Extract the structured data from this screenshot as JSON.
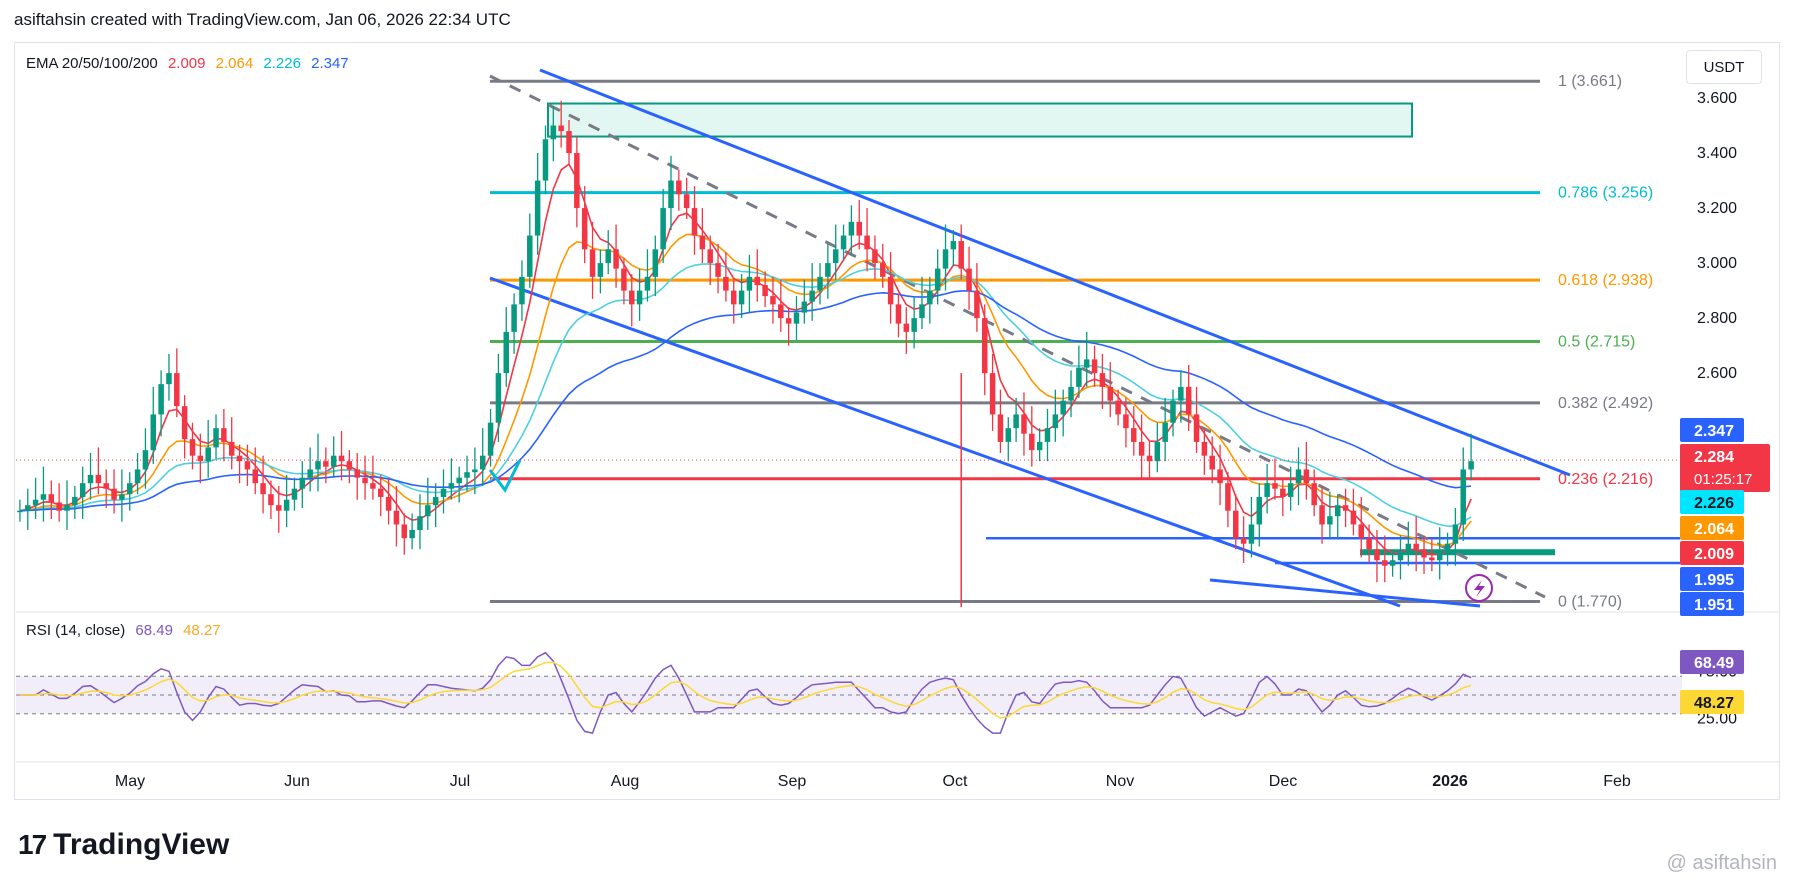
{
  "header": {
    "attribution": "asiftahsin created with TradingView.com, Jan 06, 2026 22:34 UTC"
  },
  "legend_main": {
    "label": "EMA 20/50/100/200",
    "v20": "2.009",
    "v50": "2.064",
    "v100": "2.226",
    "v200": "2.347"
  },
  "legend_rsi": {
    "label": "RSI (14, close)",
    "rsi": "68.49",
    "ma": "48.27"
  },
  "currency": "USDT",
  "footer": {
    "brand": "TradingView",
    "logo_glyph": "17",
    "watermark": "@ asiftahsin"
  },
  "colors": {
    "up": "#089981",
    "down": "#f23645",
    "ema20": "#f23645",
    "ema50": "#ff9800",
    "ema100": "#4dd0e1",
    "ema200": "#2962ff",
    "rsi": "#7e57c2",
    "rsi_ma": "#fdd835",
    "channel": "#2962ff"
  },
  "chart_data": {
    "type": "candlestick",
    "y_axis": {
      "min": 1.75,
      "max": 3.72,
      "ticks": [
        "3.600",
        "3.400",
        "3.200",
        "3.000",
        "2.800",
        "2.600"
      ]
    },
    "x_axis": {
      "labels": [
        "May",
        "Jun",
        "Jul",
        "Aug",
        "Sep",
        "Oct",
        "Nov",
        "Dec",
        "2026",
        "Feb"
      ]
    },
    "fibonacci": [
      {
        "label": "1 (3.661)",
        "value": 3.661,
        "color": "#787b86"
      },
      {
        "label": "0.786 (3.256)",
        "value": 3.256,
        "color": "#00bcd4"
      },
      {
        "label": "0.618 (2.938)",
        "value": 2.938,
        "color": "#ff9800"
      },
      {
        "label": "0.5 (2.715)",
        "value": 2.715,
        "color": "#4caf50"
      },
      {
        "label": "0.382 (2.492)",
        "value": 2.492,
        "color": "#787b86"
      },
      {
        "label": "0.236 (2.216)",
        "value": 2.216,
        "color": "#f23645"
      },
      {
        "label": "0 (1.770)",
        "value": 1.77,
        "color": "#787b86"
      }
    ],
    "price_tags": [
      {
        "text": "2.347",
        "value": 2.347,
        "color": "#2962ff"
      },
      {
        "text": "2.284",
        "value": 2.284,
        "color": "#f23645",
        "sub": "01:25:17"
      },
      {
        "text": "2.226",
        "value": 2.226,
        "color": "#00e5ff"
      },
      {
        "text": "2.064",
        "value": 2.064,
        "color": "#ff9800"
      },
      {
        "text": "2.009",
        "value": 2.009,
        "color": "#f23645"
      },
      {
        "text": "1.995",
        "value": 1.995,
        "color": "#2962ff"
      },
      {
        "text": "1.951",
        "value": 1.951,
        "color": "#2962ff"
      }
    ],
    "rsi": {
      "ticks": [
        "75.00",
        "25.00"
      ],
      "upper": 70,
      "mid": 50,
      "lower": 30,
      "tags": [
        {
          "text": "68.49",
          "value": 68.49,
          "color": "#7e57c2"
        },
        {
          "text": "48.27",
          "value": 48.27,
          "color": "#fdd835"
        }
      ]
    },
    "series": [
      {
        "name": "EMA 20",
        "value": 2.009
      },
      {
        "name": "EMA 50",
        "value": 2.064
      },
      {
        "name": "EMA 100",
        "value": 2.226
      },
      {
        "name": "EMA 200",
        "value": 2.347
      }
    ],
    "close_path": [
      2.1,
      2.12,
      2.14,
      2.16,
      2.13,
      2.1,
      2.12,
      2.15,
      2.2,
      2.23,
      2.2,
      2.18,
      2.14,
      2.16,
      2.2,
      2.25,
      2.32,
      2.45,
      2.56,
      2.6,
      2.48,
      2.36,
      2.3,
      2.28,
      2.33,
      2.4,
      2.35,
      2.3,
      2.28,
      2.25,
      2.2,
      2.16,
      2.12,
      2.1,
      2.14,
      2.18,
      2.22,
      2.25,
      2.28,
      2.26,
      2.3,
      2.28,
      2.25,
      2.22,
      2.2,
      2.18,
      2.15,
      2.1,
      2.05,
      2.0,
      2.03,
      2.08,
      2.12,
      2.15,
      2.18,
      2.2,
      2.22,
      2.24,
      2.25,
      2.3,
      2.42,
      2.6,
      2.75,
      2.85,
      2.95,
      3.1,
      3.3,
      3.45,
      3.5,
      3.48,
      3.4,
      3.2,
      3.05,
      2.95,
      3.0,
      3.05,
      2.98,
      2.9,
      2.85,
      2.9,
      2.95,
      3.05,
      3.2,
      3.3,
      3.25,
      3.2,
      3.1,
      3.05,
      3.0,
      2.95,
      2.9,
      2.85,
      2.9,
      2.95,
      2.92,
      2.88,
      2.85,
      2.8,
      2.78,
      2.82,
      2.86,
      2.9,
      2.95,
      3.0,
      3.05,
      3.1,
      3.15,
      3.1,
      3.05,
      3.0,
      2.95,
      2.85,
      2.78,
      2.75,
      2.8,
      2.85,
      2.9,
      2.98,
      3.05,
      3.08,
      2.98,
      2.9,
      2.8,
      2.6,
      2.45,
      2.35,
      2.4,
      2.45,
      2.38,
      2.32,
      2.35,
      2.4,
      2.45,
      2.5,
      2.55,
      2.62,
      2.65,
      2.6,
      2.55,
      2.5,
      2.45,
      2.4,
      2.35,
      2.3,
      2.28,
      2.35,
      2.42,
      2.5,
      2.55,
      2.45,
      2.35,
      2.3,
      2.25,
      2.2,
      2.1,
      2.0,
      1.98,
      2.05,
      2.15,
      2.2,
      2.18,
      2.15,
      2.2,
      2.25,
      2.2,
      2.12,
      2.05,
      2.08,
      2.12,
      2.1,
      2.05,
      2.0,
      1.96,
      1.92,
      1.9,
      1.92,
      1.95,
      1.98,
      1.96,
      1.93,
      1.92,
      1.95,
      1.98,
      2.05,
      2.25,
      2.28
    ]
  }
}
